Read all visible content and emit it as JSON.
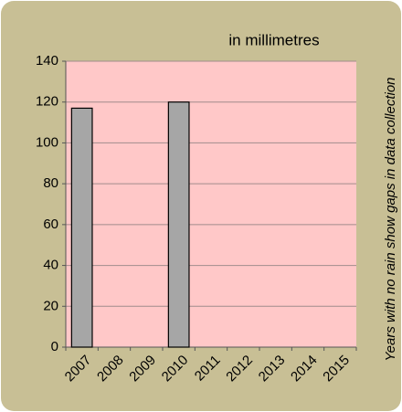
{
  "chart_data": {
    "type": "bar",
    "title": "in millimetres",
    "side_note": "Years with no rain show gaps in data collection",
    "categories": [
      "2007",
      "2008",
      "2009",
      "2010",
      "2011",
      "2012",
      "2013",
      "2014",
      "2015"
    ],
    "values": [
      117,
      null,
      null,
      120,
      null,
      null,
      null,
      null,
      null
    ],
    "color": "#a6a6a6",
    "ylim": [
      0,
      140
    ],
    "yticks": [
      0,
      20,
      40,
      60,
      80,
      100,
      120,
      140
    ],
    "grid": true
  }
}
